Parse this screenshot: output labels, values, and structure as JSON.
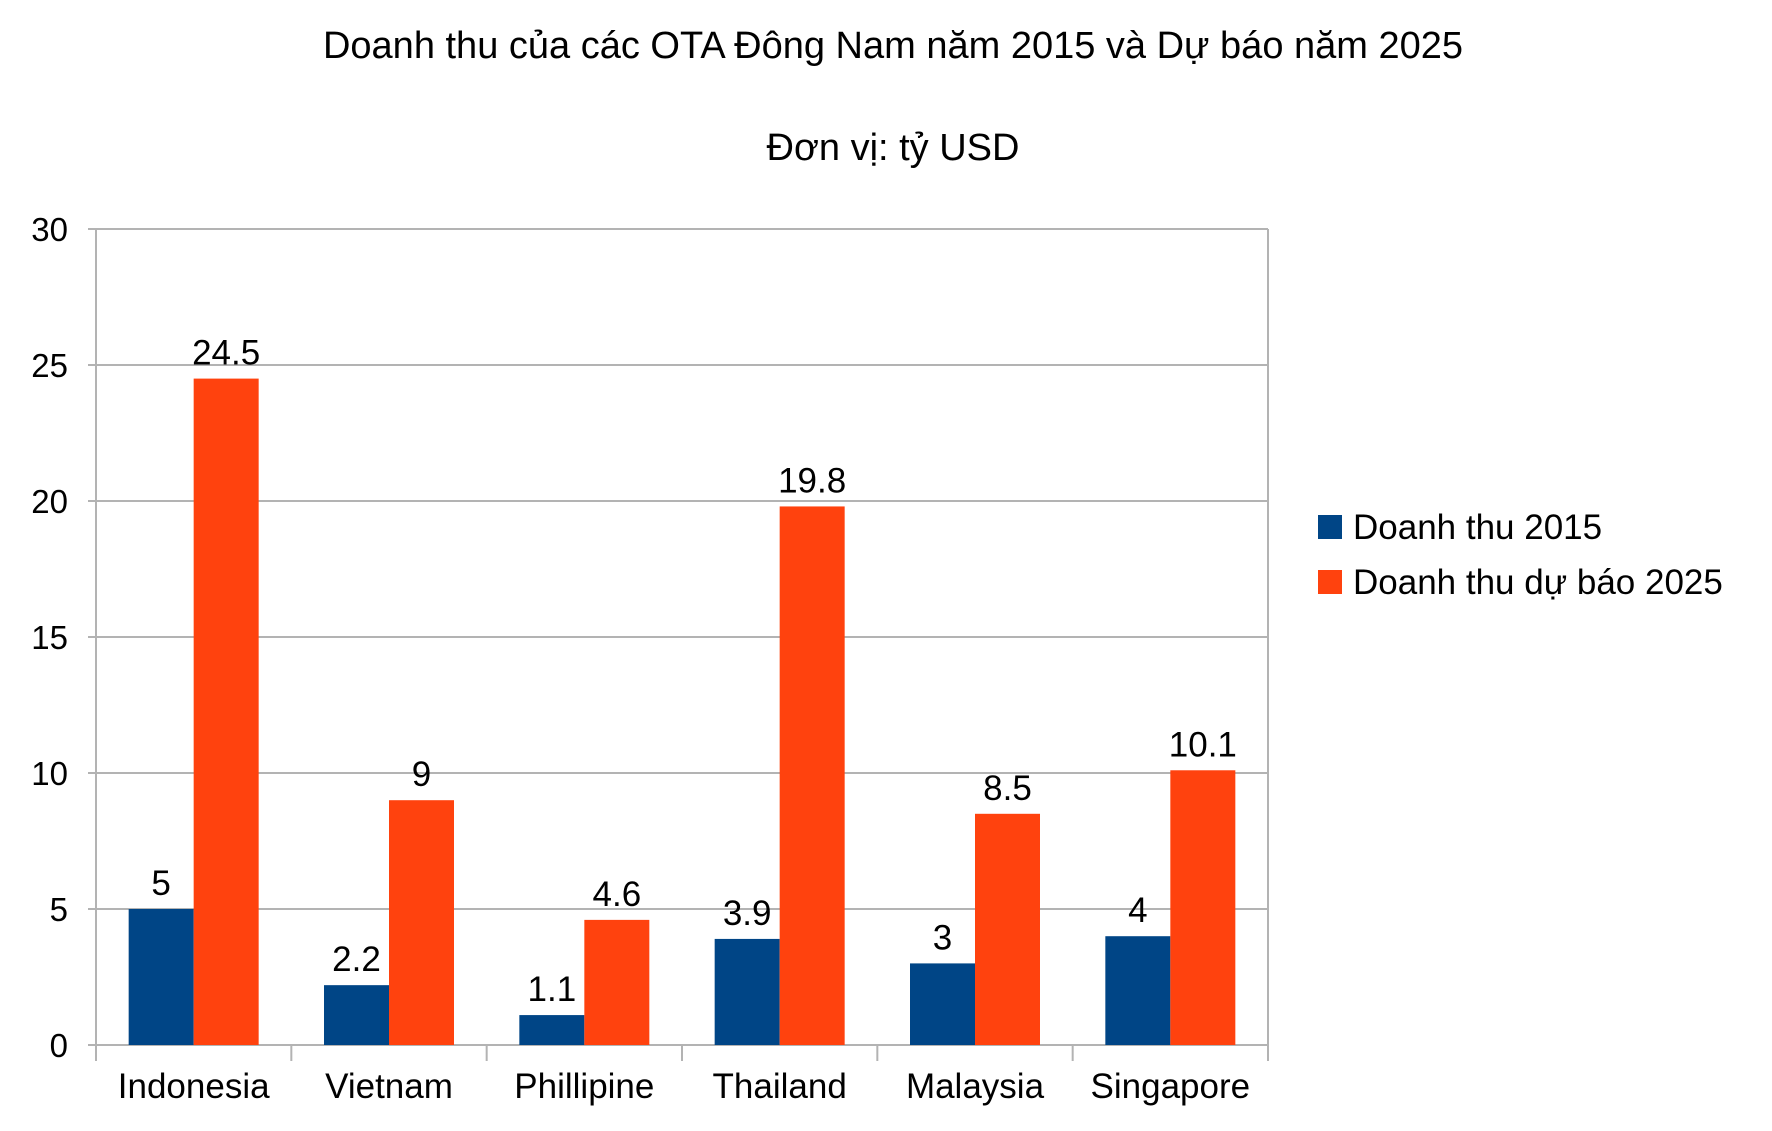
{
  "chart_data": {
    "type": "bar",
    "title": "Doanh thu của các OTA Đông Nam năm 2015 và Dự báo năm 2025",
    "subtitle": "Đơn vị: tỷ USD",
    "xlabel": "",
    "ylabel": "",
    "ylim": [
      0,
      30
    ],
    "yticks": [
      0,
      5,
      10,
      15,
      20,
      25,
      30
    ],
    "grid": true,
    "legend_position": "right",
    "categories": [
      "Indonesia",
      "Vietnam",
      "Phillipine",
      "Thailand",
      "Malaysia",
      "Singapore"
    ],
    "series": [
      {
        "name": "Doanh thu 2015",
        "color": "#004586",
        "values": [
          5,
          2.2,
          1.1,
          3.9,
          3,
          4
        ]
      },
      {
        "name": "Doanh thu dự báo 2025",
        "color": "#ff420e",
        "values": [
          24.5,
          9,
          4.6,
          19.8,
          8.5,
          10.1
        ]
      }
    ]
  }
}
